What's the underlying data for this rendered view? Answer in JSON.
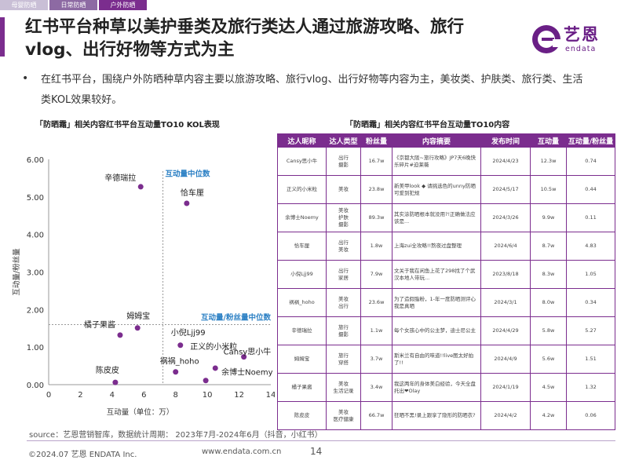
{
  "tabs": [
    "母婴防晒",
    "日常防晒",
    "户外防晒"
  ],
  "title": "红书平台种草以美护垂类及旅行类达人通过旅游攻略、旅行vlog、出行好物等方式为主",
  "logo": {
    "cn": "艺恩",
    "en": "endata"
  },
  "bullet": "•",
  "body": "在红书平台，围绕户外防晒种草内容主要以旅游攻略、旅行vlog、出行好物等内容为主，美妆类、护肤类、旅行类、生活类KOL效果较好。",
  "left_title": "「防晒霜」相关内容红书平台互动量TO10 KOL表现",
  "right_title": "「防晒霜」相关内容红书平台互动量TO10内容",
  "chart_data": {
    "type": "scatter",
    "title": "「防晒霜」相关内容红书平台互动量TO10 KOL表现",
    "xlabel": "互动量（单位：万）",
    "ylabel": "互动量/粉丝量",
    "xlim": [
      0,
      14
    ],
    "ylim": [
      0,
      6
    ],
    "xticks": [
      "0",
      "2",
      "4",
      "6",
      "8",
      "10",
      "12",
      "14"
    ],
    "yticks": [
      "0.00",
      "1.00",
      "2.00",
      "3.00",
      "4.00",
      "5.00",
      "6.00"
    ],
    "median_x_label": "互动量中位数",
    "median_y_label": "互动量/粉丝量中位数",
    "median_x": 7.2,
    "median_y": 1.6,
    "color": "#7b2d8e",
    "points": [
      {
        "name": "辛德瑞拉",
        "x": 5.8,
        "y": 5.27
      },
      {
        "name": "恰车厘",
        "x": 8.7,
        "y": 4.83
      },
      {
        "name": "姆姆宝",
        "x": 5.6,
        "y": 1.51
      },
      {
        "name": "橘子果酱",
        "x": 4.5,
        "y": 1.32
      },
      {
        "name": "小倪Ljj99",
        "x": 8.3,
        "y": 1.05
      },
      {
        "name": "Cansy思小牛",
        "x": 12.3,
        "y": 0.74
      },
      {
        "name": "祸祸_hoho",
        "x": 8.0,
        "y": 0.34
      },
      {
        "name": "正义的小米粒",
        "x": 10.5,
        "y": 0.44
      },
      {
        "name": "余博士Noemy",
        "x": 9.9,
        "y": 0.11
      },
      {
        "name": "陈皮皮",
        "x": 4.2,
        "y": 0.06
      }
    ]
  },
  "table": {
    "headers": [
      "达人昵称",
      "达人类型",
      "粉丝量",
      "内容摘要",
      "发布时间",
      "互动量",
      "互动量/粉丝量"
    ],
    "rows": [
      [
        "Cansy思小牛",
        "出行\n摄影",
        "16.7w",
        "《京都大阪~旅行攻略》JP7天6晚快乐碎片#迫莱薇",
        "2024/4/23",
        "12.3w",
        "0.74"
      ],
      [
        "正义的小米粒",
        "美妆",
        "23.8w",
        "新美甲look ◆ 请挑选色的unny防晒可爱到犯规",
        "2024/5/17",
        "10.5w",
        "0.44"
      ],
      [
        "余博士Noemy",
        "美妆\n护肤\n摄影",
        "89.3w",
        "其实涂防晒根本就没用?!正确做法应该是...",
        "2024/3/26",
        "9.9w",
        "0.11"
      ],
      [
        "恰车厘",
        "出行\n美妆",
        "1.8w",
        "上海zui全攻略!!熬夜过盘整理",
        "2024/6/4",
        "8.7w",
        "4.83"
      ],
      [
        "小倪Ljj99",
        "出行\n家居",
        "7.9w",
        "文关于我在闲鱼上花了298找了个武汉本地人带玩...",
        "2023/8/18",
        "8.3w",
        "1.05"
      ],
      [
        "祸祸_hoho",
        "美妆\n出行",
        "23.6w",
        "为了造假脂粉，1-年一度防晒测评心我是真晒",
        "2024/3/1",
        "8.0w",
        "0.34"
      ],
      [
        "辛德瑞拉",
        "旅行\n摄影",
        "1.1w",
        "每个女孩心中的公主梦，迪士尼公主",
        "2024/4/29",
        "5.8w",
        "5.27"
      ],
      [
        "姆姆宝",
        "旅行\n穿搭",
        "3.7w",
        "斯米兰有自由的味道!!live图太好拍了!!",
        "2024/4/9",
        "5.6w",
        "1.51"
      ],
      [
        "橘子果酱",
        "美妆\n生活记录",
        "3.4w",
        "我这两年的身体美白经验，今天全盘托出❤Olay",
        "2024/1/19",
        "4.5w",
        "1.32"
      ],
      [
        "陈皮皮",
        "美妆\n医疗健康",
        "66.7w",
        "狂晒不黑!录上跟享了隐形的防晒衣?",
        "2024/4/2",
        "4.2w",
        "0.06"
      ]
    ]
  },
  "source": "source：艺恩营销智库，数据统计周期：  2023年7月-2024年6月（抖音，小红书）",
  "footer": {
    "copyright": "©2024.07  艺恩 ENDATA Inc.",
    "url": "www.endata.com.cn",
    "page": "14"
  }
}
